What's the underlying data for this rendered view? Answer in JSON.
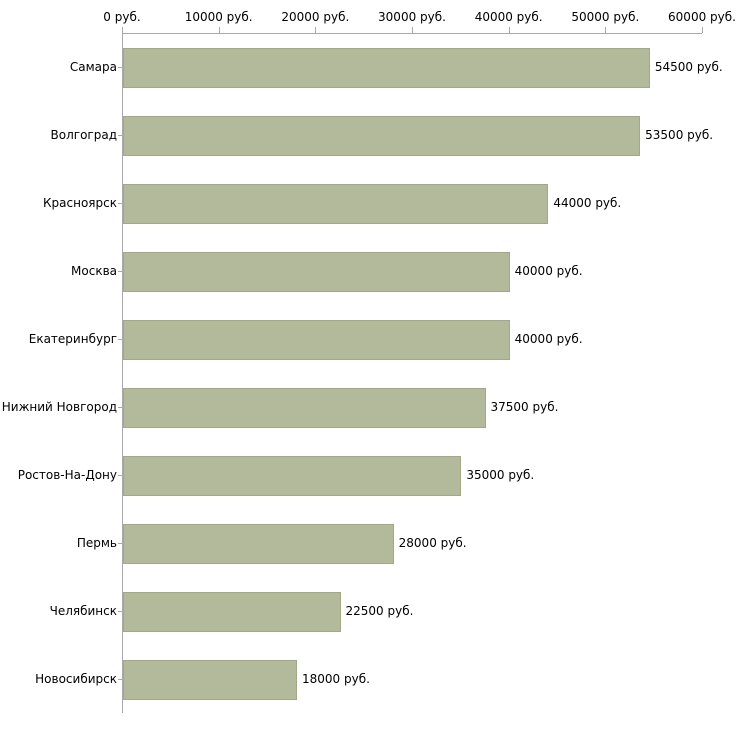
{
  "chart_data": {
    "type": "bar",
    "orientation": "horizontal",
    "title": "",
    "xlabel": "",
    "ylabel": "",
    "categories": [
      "Самара",
      "Волгоград",
      "Красноярск",
      "Москва",
      "Екатеринбург",
      "Нижний Новгород",
      "Ростов-На-Дону",
      "Пермь",
      "Челябинск",
      "Новосибирск"
    ],
    "values": [
      54500,
      53500,
      44000,
      40000,
      40000,
      37500,
      35000,
      28000,
      22500,
      18000
    ],
    "value_labels": [
      "54500 руб.",
      "53500 руб.",
      "44000 руб.",
      "40000 руб.",
      "40000 руб.",
      "37500 руб.",
      "35000 руб.",
      "28000 руб.",
      "22500 руб.",
      "18000 руб."
    ],
    "x_tick_labels": [
      "0 руб.",
      "10000 руб.",
      "20000 руб.",
      "30000 руб.",
      "40000 руб.",
      "50000 руб.",
      "60000 руб."
    ],
    "x_tick_values": [
      0,
      10000,
      20000,
      30000,
      40000,
      50000,
      60000
    ],
    "xlim": [
      0,
      60000
    ],
    "grid": false,
    "legend": false,
    "bar_color": "#b3b99b",
    "bar_border_color": "#a2a886",
    "axis_color": "#a9a9a9",
    "text_color": "#000000",
    "background_color": "#ffffff"
  }
}
